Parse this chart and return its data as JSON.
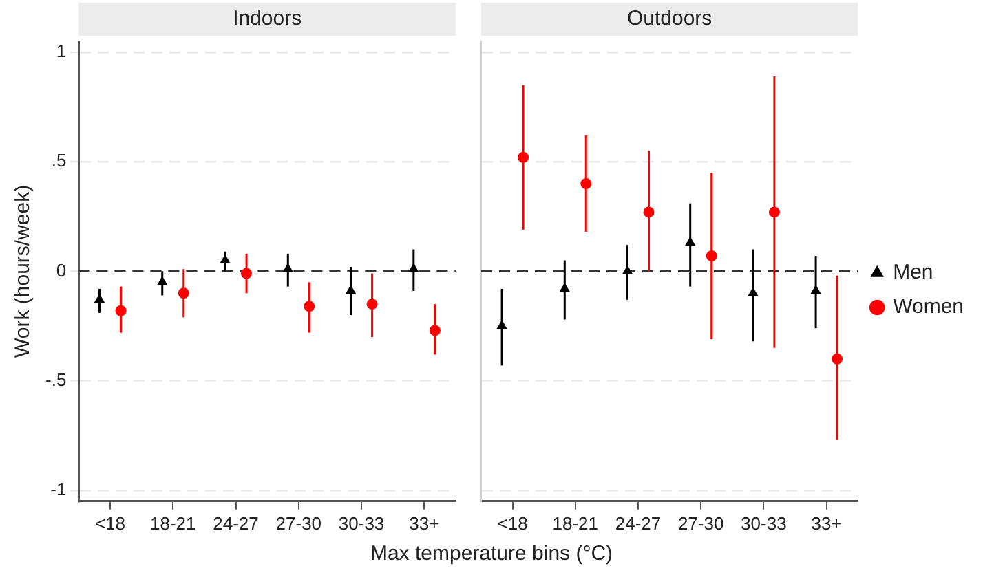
{
  "chart_data": [
    {
      "type": "scatter",
      "title": "Indoors",
      "ylabel": "Work (hours/week)",
      "xlabel": "Max temperature bins (°C)",
      "categories": [
        "<18",
        "18-21",
        "24-27",
        "27-30",
        "30-33",
        "33+"
      ],
      "series": [
        {
          "color": "#000000",
          "marker": "triangle",
          "values": [
            -0.13,
            -0.05,
            0.05,
            0.01,
            -0.09,
            0.01
          ],
          "errors": [
            [
              -0.19,
              -0.08
            ],
            [
              -0.11,
              0
            ],
            [
              0,
              0.09
            ],
            [
              -0.07,
              0.08
            ],
            [
              -0.2,
              0.02
            ],
            [
              -0.09,
              0.1
            ]
          ]
        },
        {
          "color": "#ff0000",
          "marker": "circle",
          "values": [
            -0.18,
            -0.1,
            -0.01,
            -0.16,
            -0.15,
            -0.27
          ],
          "errors": [
            [
              -0.28,
              -0.07
            ],
            [
              -0.21,
              0.01
            ],
            [
              -0.1,
              0.08
            ],
            [
              -0.28,
              -0.05
            ],
            [
              -0.3,
              -0.01
            ],
            [
              -0.38,
              -0.15
            ]
          ]
        }
      ],
      "ylim": [
        -1.05,
        1.05
      ],
      "yticks": [
        {
          "value": -1,
          "label": "-1"
        },
        {
          "value": -0.5,
          "label": "-.5"
        },
        0,
        {
          "value": 0.5,
          "label": ".5"
        },
        1
      ],
      "ref_lines": [
        {
          "axis": "y",
          "value": 0,
          "line_style": "dashed",
          "color": "#333333"
        }
      ],
      "grid": "y",
      "legend": false
    },
    {
      "type": "scatter",
      "title": "Outdoors",
      "categories": [
        "<18",
        "18-21",
        "24-27",
        "27-30",
        "30-33",
        "33+"
      ],
      "series": [
        {
          "name": "Men",
          "color": "#000000",
          "marker": "triangle",
          "values": [
            -0.25,
            -0.08,
            0,
            0.13,
            -0.1,
            -0.09
          ],
          "errors": [
            [
              -0.43,
              -0.08
            ],
            [
              -0.22,
              0.05
            ],
            [
              -0.13,
              0.12
            ],
            [
              -0.07,
              0.31
            ],
            [
              -0.32,
              0.1
            ],
            [
              -0.26,
              0.07
            ]
          ]
        },
        {
          "name": "Women",
          "color": "#ff0000",
          "marker": "circle",
          "values": [
            0.52,
            0.4,
            0.27,
            0.07,
            0.27,
            -0.4
          ],
          "errors": [
            [
              0.19,
              0.85
            ],
            [
              0.18,
              0.62
            ],
            [
              0,
              0.55
            ],
            [
              -0.31,
              0.45
            ],
            [
              -0.35,
              0.89
            ],
            [
              -0.77,
              -0.02
            ]
          ]
        }
      ],
      "ylim": [
        -1.05,
        1.05
      ],
      "yticks": [
        {
          "value": -1,
          "label": null
        },
        {
          "value": -0.5,
          "label": null
        },
        {
          "value": 0,
          "label": null
        },
        {
          "value": 0.5,
          "label": null
        },
        {
          "value": 1,
          "label": null
        }
      ],
      "tick_labels": "x",
      "ref_lines": [
        {
          "axis": "y",
          "value": 0,
          "line_style": "dashed",
          "color": "#333333"
        }
      ],
      "grid": "y",
      "legend": "right"
    }
  ]
}
